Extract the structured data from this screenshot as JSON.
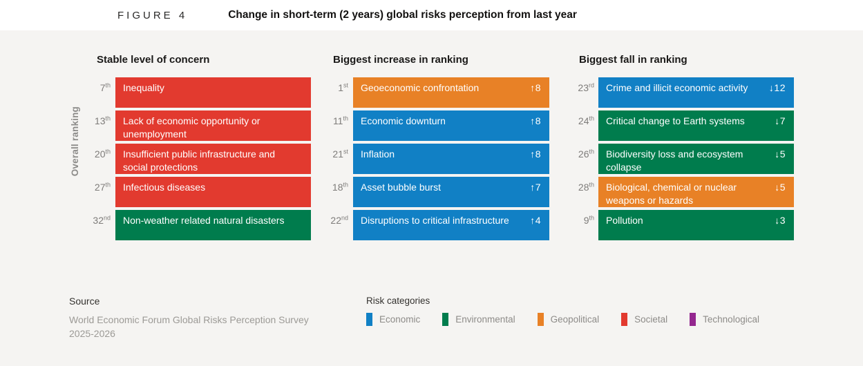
{
  "header": {
    "figure_label": "FIGURE 4",
    "title": "Change in short-term (2 years) global risks perception from last year"
  },
  "axis_label": "Overall ranking",
  "colors": {
    "economic": "#1180C5",
    "environmental": "#007C4D",
    "geopolitical": "#E88126",
    "societal": "#E23A2F",
    "technological": "#94278F",
    "background": "#F5F4F2"
  },
  "columns": [
    {
      "title": "Stable level of concern",
      "rows": [
        {
          "rank_num": "7",
          "rank_suffix": "th",
          "label": "Inequality",
          "category": "societal",
          "change": ""
        },
        {
          "rank_num": "13",
          "rank_suffix": "th",
          "label": "Lack of economic opportunity or unemployment",
          "category": "societal",
          "change": ""
        },
        {
          "rank_num": "20",
          "rank_suffix": "th",
          "label": "Insufficient public infrastructure and social protections",
          "category": "societal",
          "change": ""
        },
        {
          "rank_num": "27",
          "rank_suffix": "th",
          "label": "Infectious diseases",
          "category": "societal",
          "change": ""
        },
        {
          "rank_num": "32",
          "rank_suffix": "nd",
          "label": "Non-weather related natural disasters",
          "category": "environmental",
          "change": ""
        }
      ]
    },
    {
      "title": "Biggest increase in ranking",
      "rows": [
        {
          "rank_num": "1",
          "rank_suffix": "st",
          "label": "Geoeconomic confrontation",
          "category": "geopolitical",
          "change": "↑8"
        },
        {
          "rank_num": "11",
          "rank_suffix": "th",
          "label": "Economic downturn",
          "category": "economic",
          "change": "↑8"
        },
        {
          "rank_num": "21",
          "rank_suffix": "st",
          "label": "Inflation",
          "category": "economic",
          "change": "↑8"
        },
        {
          "rank_num": "18",
          "rank_suffix": "th",
          "label": "Asset bubble burst",
          "category": "economic",
          "change": "↑7"
        },
        {
          "rank_num": "22",
          "rank_suffix": "nd",
          "label": "Disruptions to critical infrastructure",
          "category": "economic",
          "change": "↑4"
        }
      ]
    },
    {
      "title": "Biggest fall in ranking",
      "rows": [
        {
          "rank_num": "23",
          "rank_suffix": "rd",
          "label": "Crime and illicit economic activity",
          "category": "economic",
          "change": "↓12"
        },
        {
          "rank_num": "24",
          "rank_suffix": "th",
          "label": "Critical change to Earth systems",
          "category": "environmental",
          "change": "↓7"
        },
        {
          "rank_num": "26",
          "rank_suffix": "th",
          "label": "Biodiversity loss and ecosystem collapse",
          "category": "environmental",
          "change": "↓5"
        },
        {
          "rank_num": "28",
          "rank_suffix": "th",
          "label": "Biological, chemical or nuclear weapons or hazards",
          "category": "geopolitical",
          "change": "↓5"
        },
        {
          "rank_num": "9",
          "rank_suffix": "th",
          "label": "Pollution",
          "category": "environmental",
          "change": "↓3"
        }
      ]
    }
  ],
  "footer": {
    "source_label": "Source",
    "source_line1": "World Economic Forum Global Risks Perception Survey",
    "source_line2": "2025-2026",
    "legend_title": "Risk categories",
    "legend": [
      {
        "label": "Economic",
        "category": "economic"
      },
      {
        "label": "Environmental",
        "category": "environmental"
      },
      {
        "label": "Geopolitical",
        "category": "geopolitical"
      },
      {
        "label": "Societal",
        "category": "societal"
      },
      {
        "label": "Technological",
        "category": "technological"
      }
    ]
  },
  "chart_data": {
    "type": "table",
    "title": "Change in short-term (2 years) global risks perception from last year",
    "figure_label": "FIGURE 4",
    "ylabel": "Overall ranking",
    "legend_position": "bottom",
    "legend": [
      "Economic",
      "Environmental",
      "Geopolitical",
      "Societal",
      "Technological"
    ],
    "source": "World Economic Forum Global Risks Perception Survey 2025-2026",
    "groups": [
      {
        "name": "Stable level of concern",
        "risks": [
          {
            "overall_rank": 7,
            "risk": "Inequality",
            "category": "Societal",
            "change": 0
          },
          {
            "overall_rank": 13,
            "risk": "Lack of economic opportunity or unemployment",
            "category": "Societal",
            "change": 0
          },
          {
            "overall_rank": 20,
            "risk": "Insufficient public infrastructure and social protections",
            "category": "Societal",
            "change": 0
          },
          {
            "overall_rank": 27,
            "risk": "Infectious diseases",
            "category": "Societal",
            "change": 0
          },
          {
            "overall_rank": 32,
            "risk": "Non-weather related natural disasters",
            "category": "Environmental",
            "change": 0
          }
        ]
      },
      {
        "name": "Biggest increase in ranking",
        "risks": [
          {
            "overall_rank": 1,
            "risk": "Geoeconomic confrontation",
            "category": "Geopolitical",
            "change": 8
          },
          {
            "overall_rank": 11,
            "risk": "Economic downturn",
            "category": "Economic",
            "change": 8
          },
          {
            "overall_rank": 21,
            "risk": "Inflation",
            "category": "Economic",
            "change": 8
          },
          {
            "overall_rank": 18,
            "risk": "Asset bubble burst",
            "category": "Economic",
            "change": 7
          },
          {
            "overall_rank": 22,
            "risk": "Disruptions to critical infrastructure",
            "category": "Economic",
            "change": 4
          }
        ]
      },
      {
        "name": "Biggest fall in ranking",
        "risks": [
          {
            "overall_rank": 23,
            "risk": "Crime and illicit economic activity",
            "category": "Economic",
            "change": -12
          },
          {
            "overall_rank": 24,
            "risk": "Critical change to Earth systems",
            "category": "Environmental",
            "change": -7
          },
          {
            "overall_rank": 26,
            "risk": "Biodiversity loss and ecosystem collapse",
            "category": "Environmental",
            "change": -5
          },
          {
            "overall_rank": 28,
            "risk": "Biological, chemical or nuclear weapons or hazards",
            "category": "Geopolitical",
            "change": -5
          },
          {
            "overall_rank": 9,
            "risk": "Pollution",
            "category": "Environmental",
            "change": -3
          }
        ]
      }
    ]
  }
}
